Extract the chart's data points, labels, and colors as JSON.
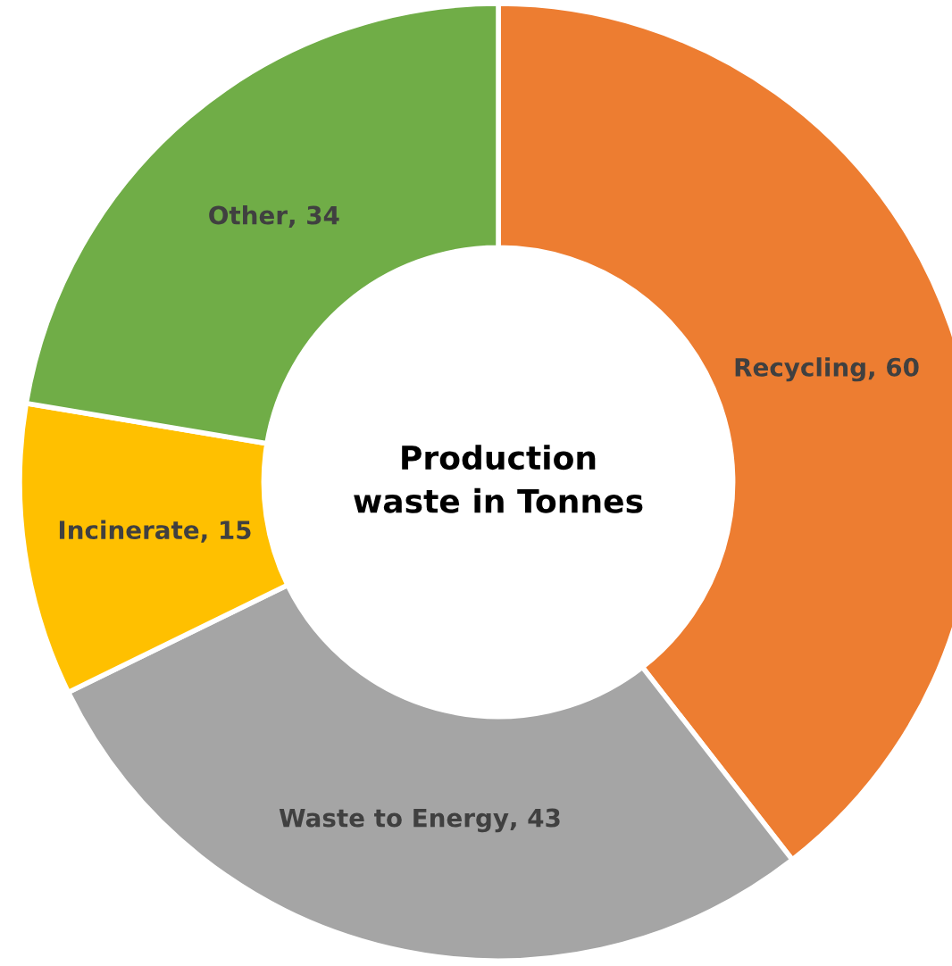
{
  "chart_data": {
    "type": "donut",
    "title": "Production waste in Tonnes",
    "categories": [
      "Recycling",
      "Waste to Energy",
      "Incinerate",
      "Other"
    ],
    "values": [
      60,
      43,
      15,
      34
    ],
    "colors": [
      "#ed7d31",
      "#a5a5a5",
      "#ffc000",
      "#70ad47"
    ],
    "value_labels": [
      ", 60",
      ", 43",
      ", 15",
      ", 34"
    ],
    "legend": false
  }
}
